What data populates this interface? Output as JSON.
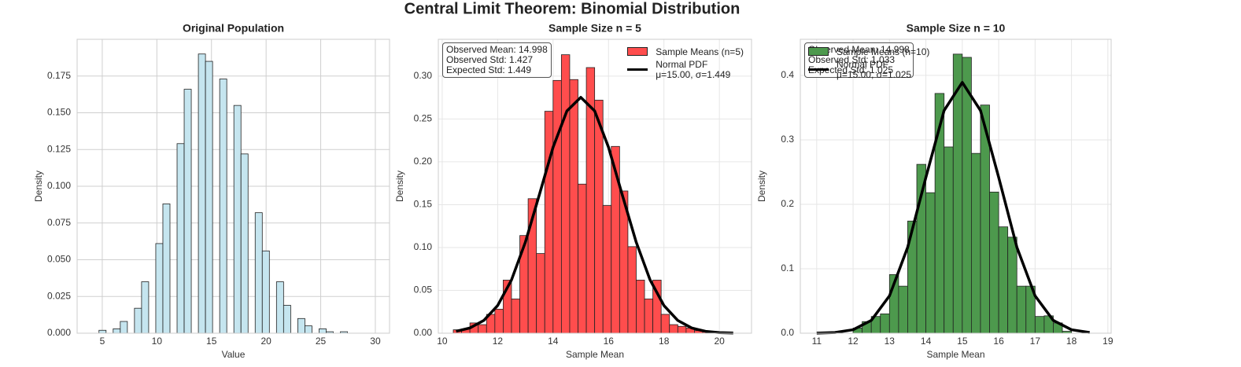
{
  "title": "Central Limit Theorem: Binomial Distribution",
  "chart_data": [
    {
      "type": "histogram",
      "title": "Original Population",
      "xlabel": "Value",
      "ylabel": "Density",
      "bins": [
        4.7,
        5.35,
        6,
        6.65,
        7.3,
        7.95,
        8.6,
        9.25,
        9.9,
        10.55,
        11.2,
        11.85,
        12.5,
        13.15,
        13.8,
        14.45,
        15.1,
        15.75,
        16.4,
        17.05,
        17.7,
        18.35,
        19,
        19.65,
        20.3,
        20.95,
        21.6,
        22.25,
        22.9,
        23.55,
        24.2,
        24.85,
        25.5,
        26.15,
        26.8,
        27.45,
        28.1,
        28.75,
        29.4,
        30.05
      ],
      "values": [
        0.002,
        0,
        0.003,
        0.008,
        0,
        0.017,
        0.035,
        0,
        0.061,
        0.088,
        0,
        0.129,
        0.166,
        0,
        0.19,
        0.185,
        0,
        0.173,
        0,
        0.155,
        0.122,
        0,
        0.082,
        0.056,
        0,
        0.035,
        0.019,
        0,
        0.01,
        0.005,
        0,
        0.003,
        0.001,
        0,
        0.001,
        0,
        0,
        0,
        0
      ],
      "color": "#c5e5ef",
      "xlim": [
        2.7,
        31.3
      ],
      "ylim": [
        0,
        0.2
      ],
      "xticks": [
        5,
        10,
        15,
        20,
        25,
        30
      ],
      "yticks": [
        {
          "value": 0,
          "label": "0.000"
        },
        0.025,
        {
          "value": 0.05,
          "label": "0.050"
        },
        0.075,
        {
          "value": 0.1,
          "label": "0.100"
        },
        0.125,
        {
          "value": 0.15,
          "label": "0.150"
        },
        0.175
      ],
      "grid": true
    },
    {
      "type": "histogram",
      "title": "Sample Size n = 5",
      "xlabel": "Sample Mean",
      "ylabel": "Density",
      "bins": [
        10.4,
        10.7,
        11,
        11.3,
        11.6,
        11.9,
        12.2,
        12.5,
        12.8,
        13.1,
        13.4,
        13.7,
        14,
        14.3,
        14.6,
        14.9,
        15.2,
        15.5,
        15.8,
        16.1,
        16.4,
        16.7,
        17,
        17.3,
        17.6,
        17.9,
        18.2,
        18.5,
        18.8,
        19.1,
        19.4,
        19.7
      ],
      "series": [
        {
          "name": "Sample Means (n=5)",
          "color": "#ff4d4d",
          "values": [
            0.004,
            0.005,
            0.012,
            0.01,
            0.022,
            0.028,
            0.062,
            0.04,
            0.114,
            0.157,
            0.093,
            0.259,
            0.295,
            0.325,
            0.296,
            0.174,
            0.31,
            0.272,
            0.149,
            0.218,
            0.166,
            0.101,
            0.062,
            0.04,
            0.062,
            0.022,
            0.01,
            0.008,
            0.006,
            0.003,
            0.002
          ]
        },
        {
          "name": "Normal PDF\nμ=15.00, σ=1.449",
          "color": "#000000",
          "x": [
            10.5,
            11,
            11.5,
            12,
            12.5,
            13,
            13.5,
            14,
            14.5,
            15,
            15.5,
            16,
            16.5,
            17,
            17.5,
            18,
            18.5,
            19,
            19.5,
            20,
            20.5
          ],
          "values": [
            0.0022,
            0.0061,
            0.0149,
            0.0323,
            0.0622,
            0.1062,
            0.1611,
            0.217,
            0.2594,
            0.2753,
            0.2594,
            0.217,
            0.1611,
            0.1062,
            0.0622,
            0.0323,
            0.0149,
            0.0061,
            0.0022,
            0.0007,
            0.0002
          ]
        }
      ],
      "annotation": "Observed Mean: 14.998\nObserved Std: 1.427\nExpected Std: 1.449",
      "legend": "upper right",
      "xlim": [
        9.86,
        21.16
      ],
      "ylim": [
        0,
        0.343
      ],
      "xticks": [
        10,
        12,
        14,
        16,
        18,
        20
      ],
      "yticks": [
        {
          "value": 0,
          "label": "0.00"
        },
        0.05,
        {
          "value": 0.1,
          "label": "0.10"
        },
        0.15,
        {
          "value": 0.2,
          "label": "0.20"
        },
        0.25,
        {
          "value": 0.3,
          "label": "0.30"
        }
      ],
      "grid": true
    },
    {
      "type": "histogram",
      "title": "Sample Size n = 10",
      "xlabel": "Sample Mean",
      "ylabel": "Density",
      "bins": [
        12,
        12.25,
        12.5,
        12.75,
        13,
        13.25,
        13.5,
        13.75,
        14,
        14.25,
        14.5,
        14.75,
        15,
        15.25,
        15.5,
        15.75,
        16,
        16.25,
        16.5,
        16.75,
        17,
        17.25,
        17.5,
        17.75,
        18
      ],
      "series": [
        {
          "name": "Sample Means (n=10)",
          "color": "#4d994d",
          "values": [
            0.008,
            0.018,
            0.026,
            0.03,
            0.091,
            0.073,
            0.174,
            0.262,
            0.218,
            0.372,
            0.289,
            0.433,
            0.428,
            0.279,
            0.354,
            0.219,
            0.165,
            0.149,
            0.073,
            0.073,
            0.026,
            0.027,
            0.016,
            0.003
          ]
        },
        {
          "name": "Normal PDF\nμ=15.00, σ=1.025",
          "color": "#000000",
          "x": [
            11,
            11.5,
            12,
            12.5,
            13,
            13.5,
            14,
            14.5,
            15,
            15.5,
            16,
            16.5,
            17,
            17.5,
            18,
            18.5
          ],
          "values": [
            0.0002,
            0.0011,
            0.0054,
            0.0199,
            0.058,
            0.1334,
            0.2418,
            0.3455,
            0.3892,
            0.3455,
            0.2418,
            0.1334,
            0.058,
            0.0199,
            0.0054,
            0.0011
          ]
        }
      ],
      "annotation": "Observed Mean: 14.998\nObserved Std: 1.033\nExpected Std: 1.025",
      "legend": "upper left",
      "xlim": [
        10.55,
        19.09
      ],
      "ylim": [
        0,
        0.456
      ],
      "xticks": [
        11,
        12,
        13,
        14,
        15,
        16,
        17,
        18,
        19
      ],
      "yticks": [
        {
          "value": 0,
          "label": "0.0"
        },
        0.1,
        0.2,
        0.3,
        0.4
      ],
      "grid": true
    }
  ]
}
